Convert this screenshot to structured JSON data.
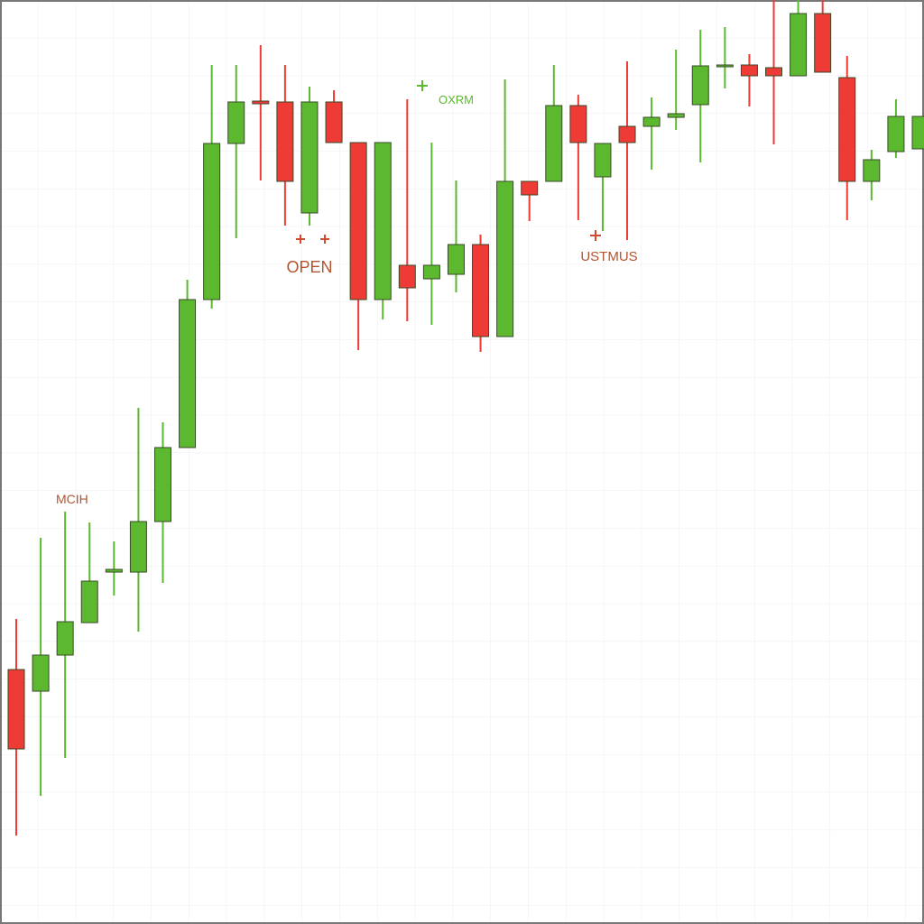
{
  "chart_data": {
    "type": "candlestick",
    "up_color": "#5cb82e",
    "down_color": "#ee3b36",
    "ylim": [
      0,
      102.4
    ],
    "grid": true,
    "annotations": [
      "MCIH",
      "OPEN",
      "OXRM",
      "USTMUS"
    ],
    "open": [
      28.2,
      25.8,
      29.8,
      33.4,
      39.0,
      39.0,
      44.6,
      52.8,
      69.2,
      86.5,
      91.2,
      91.1,
      78.8,
      91.1,
      86.6,
      69.2,
      73.0,
      71.5,
      72.0,
      75.3,
      65.1,
      82.3,
      82.3,
      90.7,
      82.8,
      88.4,
      88.4,
      89.4,
      90.8,
      95.0,
      95.2,
      94.9,
      94.0,
      100.9,
      93.8,
      82.3,
      85.6,
      85.9
    ],
    "high": [
      33.8,
      42.8,
      45.7,
      44.5,
      42.4,
      57.2,
      55.6,
      71.4,
      95.2,
      95.2,
      97.4,
      95.2,
      92.8,
      92.4,
      86.6,
      86.6,
      91.4,
      86.6,
      82.4,
      76.4,
      93.6,
      82.3,
      95.2,
      91.9,
      86.5,
      95.6,
      91.6,
      96.9,
      99.1,
      99.4,
      96.4,
      102.4,
      102.4,
      102.4,
      96.2,
      85.8,
      91.4,
      89.5
    ],
    "low": [
      9.8,
      14.2,
      18.4,
      33.4,
      36.4,
      32.4,
      37.8,
      52.8,
      68.2,
      76.0,
      82.4,
      77.4,
      77.4,
      86.6,
      63.6,
      67.0,
      66.8,
      66.4,
      70.0,
      63.4,
      65.1,
      77.9,
      82.3,
      78.0,
      76.8,
      75.8,
      83.6,
      88.0,
      84.4,
      92.6,
      90.6,
      86.4,
      94.0,
      94.4,
      78.0,
      80.2,
      84.9,
      85.9
    ],
    "close": [
      19.4,
      29.8,
      33.5,
      38.0,
      39.3,
      44.6,
      52.8,
      69.2,
      86.5,
      91.1,
      90.9,
      82.3,
      91.1,
      86.6,
      69.2,
      86.6,
      70.5,
      73.0,
      75.3,
      65.1,
      82.3,
      80.8,
      90.7,
      86.6,
      86.5,
      86.6,
      89.4,
      89.8,
      95.1,
      95.2,
      94.0,
      94.0,
      100.9,
      94.4,
      82.3,
      84.7,
      89.5,
      89.5
    ]
  }
}
